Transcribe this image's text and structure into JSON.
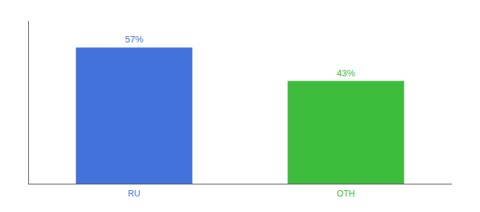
{
  "chart_data": {
    "type": "bar",
    "categories": [
      "RU",
      "OTH"
    ],
    "values": [
      57,
      43
    ],
    "value_labels": [
      "57%",
      "43%"
    ],
    "colors": [
      "#4472db",
      "#3dbb3d"
    ],
    "ylim": [
      0,
      68
    ],
    "tick_labels": "x",
    "grid": false,
    "data_labels": true
  }
}
